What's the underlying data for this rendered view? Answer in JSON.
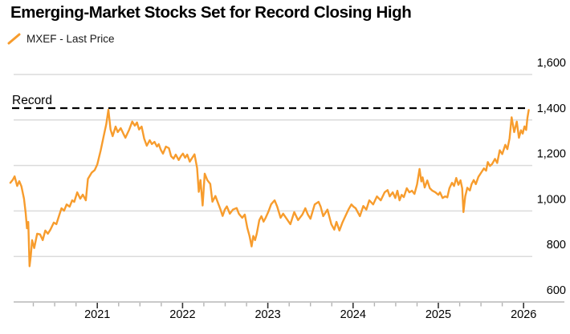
{
  "header": {
    "title": "Emerging-Market Stocks Set for Record Closing High",
    "legend_label": "MXEF - Last Price"
  },
  "chart_data": {
    "type": "line",
    "title": "Emerging-Market Stocks Set for Record Closing High",
    "legend": [
      {
        "label": "MXEF - Last Price",
        "marker": "orange-slash",
        "color": "#F79C2D"
      }
    ],
    "x_axis": {
      "major_ticks": [
        2021,
        2022,
        2023,
        2024,
        2025,
        2026
      ],
      "tick_labels": [
        "2021",
        "2022",
        "2023",
        "2024",
        "2025",
        "2026"
      ],
      "minor_ticks": [
        2020.25,
        2020.5,
        2020.75,
        2021.25,
        2021.5,
        2021.75,
        2022.25,
        2022.5,
        2022.75,
        2023.25,
        2023.5,
        2023.75,
        2024.25,
        2024.5,
        2024.75,
        2025.25,
        2025.5,
        2025.75
      ],
      "range": [
        2019.97,
        2026.5
      ]
    },
    "y_axis": {
      "side": "right",
      "range": [
        600,
        1600
      ],
      "ticks": [
        600,
        800,
        1000,
        1200,
        1400,
        1600
      ],
      "tick_labels": [
        "600",
        "800",
        "1,000",
        "1,200",
        "1,400",
        "1,600"
      ]
    },
    "grid": "horizontal",
    "annotations": {
      "record_line": {
        "label": "Record",
        "value": 1452,
        "style": "dashed",
        "color": "#000000"
      }
    },
    "colors": {
      "line": "#F79C2D",
      "grid": "#DBDBDB",
      "axis_line": "#C9C9C9",
      "major_tick": "#333333",
      "minor_tick": "#B3B3B3",
      "text": "#000000"
    },
    "series": [
      {
        "name": "MXEF - Last Price",
        "color": "#F79C2D",
        "points": [
          [
            2019.98,
            1124
          ],
          [
            2020.01,
            1138
          ],
          [
            2020.03,
            1152
          ],
          [
            2020.06,
            1110
          ],
          [
            2020.085,
            1131
          ],
          [
            2020.11,
            1108
          ],
          [
            2020.14,
            1054
          ],
          [
            2020.16,
            990
          ],
          [
            2020.175,
            924
          ],
          [
            2020.19,
            952
          ],
          [
            2020.205,
            757
          ],
          [
            2020.22,
            805
          ],
          [
            2020.235,
            872
          ],
          [
            2020.26,
            837
          ],
          [
            2020.295,
            900
          ],
          [
            2020.33,
            897
          ],
          [
            2020.36,
            872
          ],
          [
            2020.39,
            914
          ],
          [
            2020.42,
            900
          ],
          [
            2020.45,
            918
          ],
          [
            2020.49,
            949
          ],
          [
            2020.52,
            942
          ],
          [
            2020.55,
            977
          ],
          [
            2020.58,
            1012
          ],
          [
            2020.61,
            1001
          ],
          [
            2020.64,
            1029
          ],
          [
            2020.675,
            1019
          ],
          [
            2020.705,
            1047
          ],
          [
            2020.73,
            1040
          ],
          [
            2020.765,
            1082
          ],
          [
            2020.8,
            1054
          ],
          [
            2020.83,
            1072
          ],
          [
            2020.865,
            1047
          ],
          [
            2020.89,
            1141
          ],
          [
            2020.935,
            1169
          ],
          [
            2020.97,
            1180
          ],
          [
            2021.0,
            1205
          ],
          [
            2021.04,
            1266
          ],
          [
            2021.075,
            1330
          ],
          [
            2021.105,
            1382
          ],
          [
            2021.13,
            1445
          ],
          [
            2021.155,
            1358
          ],
          [
            2021.18,
            1329
          ],
          [
            2021.215,
            1371
          ],
          [
            2021.24,
            1347
          ],
          [
            2021.275,
            1364
          ],
          [
            2021.305,
            1340
          ],
          [
            2021.33,
            1322
          ],
          [
            2021.375,
            1358
          ],
          [
            2021.41,
            1393
          ],
          [
            2021.44,
            1375
          ],
          [
            2021.465,
            1389
          ],
          [
            2021.49,
            1358
          ],
          [
            2021.52,
            1371
          ],
          [
            2021.55,
            1318
          ],
          [
            2021.58,
            1287
          ],
          [
            2021.615,
            1311
          ],
          [
            2021.64,
            1294
          ],
          [
            2021.67,
            1304
          ],
          [
            2021.7,
            1283
          ],
          [
            2021.72,
            1294
          ],
          [
            2021.745,
            1269
          ],
          [
            2021.77,
            1252
          ],
          [
            2021.805,
            1283
          ],
          [
            2021.84,
            1276
          ],
          [
            2021.865,
            1241
          ],
          [
            2021.895,
            1230
          ],
          [
            2021.92,
            1248
          ],
          [
            2021.955,
            1224
          ],
          [
            2021.98,
            1241
          ],
          [
            2022.005,
            1252
          ],
          [
            2022.03,
            1234
          ],
          [
            2022.055,
            1248
          ],
          [
            2022.085,
            1217
          ],
          [
            2022.11,
            1232
          ],
          [
            2022.14,
            1249
          ],
          [
            2022.17,
            1189
          ],
          [
            2022.19,
            1084
          ],
          [
            2022.21,
            1136
          ],
          [
            2022.235,
            1024
          ],
          [
            2022.26,
            1164
          ],
          [
            2022.29,
            1136
          ],
          [
            2022.325,
            1119
          ],
          [
            2022.35,
            1041
          ],
          [
            2022.385,
            1066
          ],
          [
            2022.42,
            1031
          ],
          [
            2022.445,
            1006
          ],
          [
            2022.47,
            978
          ],
          [
            2022.495,
            1006
          ],
          [
            2022.52,
            1020
          ],
          [
            2022.555,
            988
          ],
          [
            2022.59,
            1006
          ],
          [
            2022.635,
            1013
          ],
          [
            2022.66,
            988
          ],
          [
            2022.7,
            970
          ],
          [
            2022.73,
            984
          ],
          [
            2022.76,
            925
          ],
          [
            2022.785,
            890
          ],
          [
            2022.81,
            844
          ],
          [
            2022.83,
            890
          ],
          [
            2022.85,
            872
          ],
          [
            2022.87,
            900
          ],
          [
            2022.9,
            960
          ],
          [
            2022.925,
            977
          ],
          [
            2022.95,
            953
          ],
          [
            2022.975,
            970
          ],
          [
            2023.005,
            995
          ],
          [
            2023.04,
            1030
          ],
          [
            2023.08,
            1047
          ],
          [
            2023.11,
            1019
          ],
          [
            2023.15,
            970
          ],
          [
            2023.18,
            988
          ],
          [
            2023.22,
            966
          ],
          [
            2023.265,
            942
          ],
          [
            2023.31,
            995
          ],
          [
            2023.355,
            960
          ],
          [
            2023.405,
            984
          ],
          [
            2023.44,
            1012
          ],
          [
            2023.47,
            984
          ],
          [
            2023.5,
            966
          ],
          [
            2023.55,
            1029
          ],
          [
            2023.595,
            1040
          ],
          [
            2023.62,
            1019
          ],
          [
            2023.65,
            977
          ],
          [
            2023.7,
            1006
          ],
          [
            2023.745,
            942
          ],
          [
            2023.78,
            918
          ],
          [
            2023.805,
            952
          ],
          [
            2023.84,
            914
          ],
          [
            2023.875,
            949
          ],
          [
            2023.91,
            977
          ],
          [
            2023.945,
            1006
          ],
          [
            2023.98,
            1029
          ],
          [
            2024.005,
            1019
          ],
          [
            2024.03,
            1012
          ],
          [
            2024.08,
            977
          ],
          [
            2024.12,
            1022
          ],
          [
            2024.155,
            1006
          ],
          [
            2024.19,
            1047
          ],
          [
            2024.235,
            1029
          ],
          [
            2024.28,
            1064
          ],
          [
            2024.325,
            1047
          ],
          [
            2024.37,
            1082
          ],
          [
            2024.405,
            1092
          ],
          [
            2024.43,
            1064
          ],
          [
            2024.465,
            1082
          ],
          [
            2024.495,
            1057
          ],
          [
            2024.52,
            1089
          ],
          [
            2024.545,
            1047
          ],
          [
            2024.57,
            1071
          ],
          [
            2024.595,
            1061
          ],
          [
            2024.63,
            1100
          ],
          [
            2024.66,
            1082
          ],
          [
            2024.69,
            1089
          ],
          [
            2024.72,
            1075
          ],
          [
            2024.75,
            1117
          ],
          [
            2024.765,
            1150
          ],
          [
            2024.78,
            1185
          ],
          [
            2024.8,
            1130
          ],
          [
            2024.815,
            1148
          ],
          [
            2024.84,
            1103
          ],
          [
            2024.87,
            1134
          ],
          [
            2024.9,
            1100
          ],
          [
            2024.93,
            1089
          ],
          [
            2024.965,
            1082
          ],
          [
            2025.0,
            1071
          ],
          [
            2025.02,
            1082
          ],
          [
            2025.05,
            1057
          ],
          [
            2025.08,
            1064
          ],
          [
            2025.105,
            1060
          ],
          [
            2025.13,
            1100
          ],
          [
            2025.16,
            1124
          ],
          [
            2025.185,
            1110
          ],
          [
            2025.21,
            1145
          ],
          [
            2025.235,
            1115
          ],
          [
            2025.26,
            1135
          ],
          [
            2025.28,
            1100
          ],
          [
            2025.295,
            995
          ],
          [
            2025.315,
            1064
          ],
          [
            2025.34,
            1102
          ],
          [
            2025.37,
            1090
          ],
          [
            2025.39,
            1118
          ],
          [
            2025.415,
            1136
          ],
          [
            2025.44,
            1118
          ],
          [
            2025.47,
            1150
          ],
          [
            2025.505,
            1170
          ],
          [
            2025.535,
            1187
          ],
          [
            2025.56,
            1177
          ],
          [
            2025.58,
            1215
          ],
          [
            2025.605,
            1198
          ],
          [
            2025.63,
            1206
          ],
          [
            2025.665,
            1229
          ],
          [
            2025.69,
            1211
          ],
          [
            2025.72,
            1267
          ],
          [
            2025.75,
            1250
          ],
          [
            2025.785,
            1291
          ],
          [
            2025.81,
            1272
          ],
          [
            2025.835,
            1319
          ],
          [
            2025.86,
            1412
          ],
          [
            2025.89,
            1347
          ],
          [
            2025.92,
            1393
          ],
          [
            2025.945,
            1322
          ],
          [
            2025.97,
            1355
          ],
          [
            2025.99,
            1340
          ],
          [
            2026.01,
            1372
          ],
          [
            2026.03,
            1356
          ],
          [
            2026.045,
            1410
          ],
          [
            2026.06,
            1444
          ]
        ]
      }
    ]
  }
}
